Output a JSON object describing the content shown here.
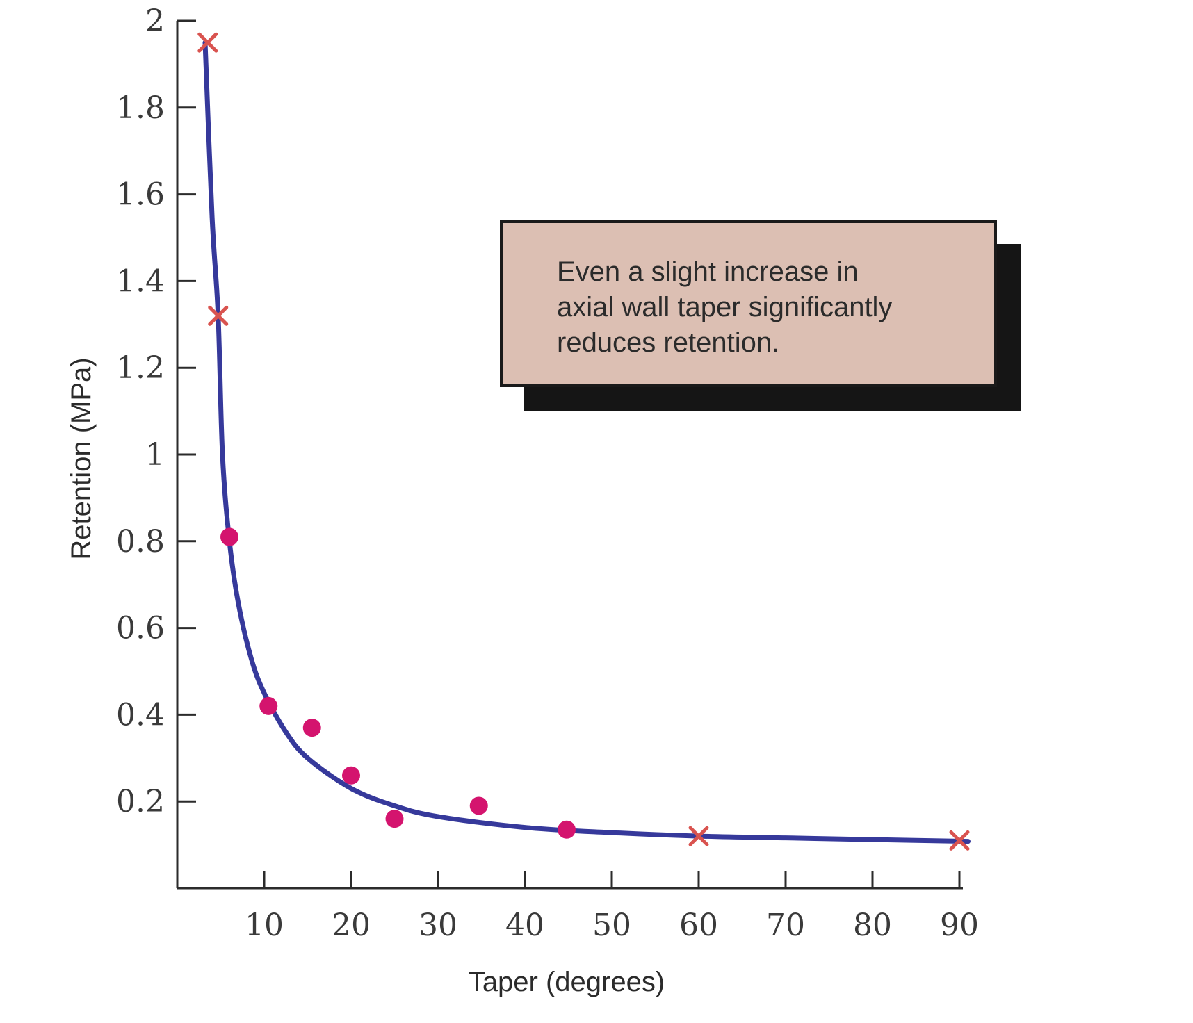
{
  "chart_data": {
    "type": "scatter",
    "title": "",
    "xlabel": "Taper (degrees)",
    "ylabel": "Retention (MPa)",
    "xlim": [
      0,
      90
    ],
    "ylim": [
      0,
      2
    ],
    "x_ticks": [
      10,
      20,
      30,
      40,
      50,
      60,
      70,
      80,
      90
    ],
    "x_tick_labels": [
      "10",
      "20",
      "30",
      "40",
      "50",
      "60",
      "70",
      "80",
      "90"
    ],
    "y_ticks": [
      0.2,
      0.4,
      0.6,
      0.8,
      1,
      1.2,
      1.4,
      1.6,
      1.8,
      2
    ],
    "y_tick_labels": [
      "0.2",
      "0.4",
      "0.6",
      "0.8",
      "1",
      "1.2",
      "1.4",
      "1.6",
      "1.8",
      "2"
    ],
    "grid": false,
    "series": [
      {
        "marker": "x",
        "color": "#d9534f",
        "points": [
          {
            "x": 3.5,
            "y": 1.95
          },
          {
            "x": 4.7,
            "y": 1.32
          },
          {
            "x": 60,
            "y": 0.12
          },
          {
            "x": 90,
            "y": 0.11
          }
        ]
      },
      {
        "marker": "circle",
        "color": "#d4146e",
        "points": [
          {
            "x": 6,
            "y": 0.81
          },
          {
            "x": 10.5,
            "y": 0.42
          },
          {
            "x": 15.5,
            "y": 0.37
          },
          {
            "x": 20,
            "y": 0.26
          },
          {
            "x": 25,
            "y": 0.16
          },
          {
            "x": 34.7,
            "y": 0.19
          },
          {
            "x": 44.8,
            "y": 0.135
          }
        ]
      },
      {
        "marker": "none",
        "line": "smooth",
        "color": "#36399b",
        "points": [
          {
            "x": 3.2,
            "y": 1.95
          },
          {
            "x": 4.0,
            "y": 1.55
          },
          {
            "x": 4.7,
            "y": 1.32
          },
          {
            "x": 5.2,
            "y": 1.0
          },
          {
            "x": 6.0,
            "y": 0.8
          },
          {
            "x": 7.0,
            "y": 0.66
          },
          {
            "x": 8.5,
            "y": 0.53
          },
          {
            "x": 10.0,
            "y": 0.45
          },
          {
            "x": 12.5,
            "y": 0.36
          },
          {
            "x": 15.0,
            "y": 0.3
          },
          {
            "x": 20.0,
            "y": 0.23
          },
          {
            "x": 25.0,
            "y": 0.19
          },
          {
            "x": 30.0,
            "y": 0.165
          },
          {
            "x": 40.0,
            "y": 0.14
          },
          {
            "x": 50.0,
            "y": 0.128
          },
          {
            "x": 60.0,
            "y": 0.12
          },
          {
            "x": 70.0,
            "y": 0.116
          },
          {
            "x": 80.0,
            "y": 0.112
          },
          {
            "x": 91.0,
            "y": 0.108
          }
        ]
      }
    ],
    "annotations": [
      {
        "lines": [
          "Even a slight increase in",
          "axial wall taper significantly",
          "reduces retention."
        ],
        "box_color": "#dcbfb3",
        "shadow_color": "#151515"
      }
    ]
  }
}
